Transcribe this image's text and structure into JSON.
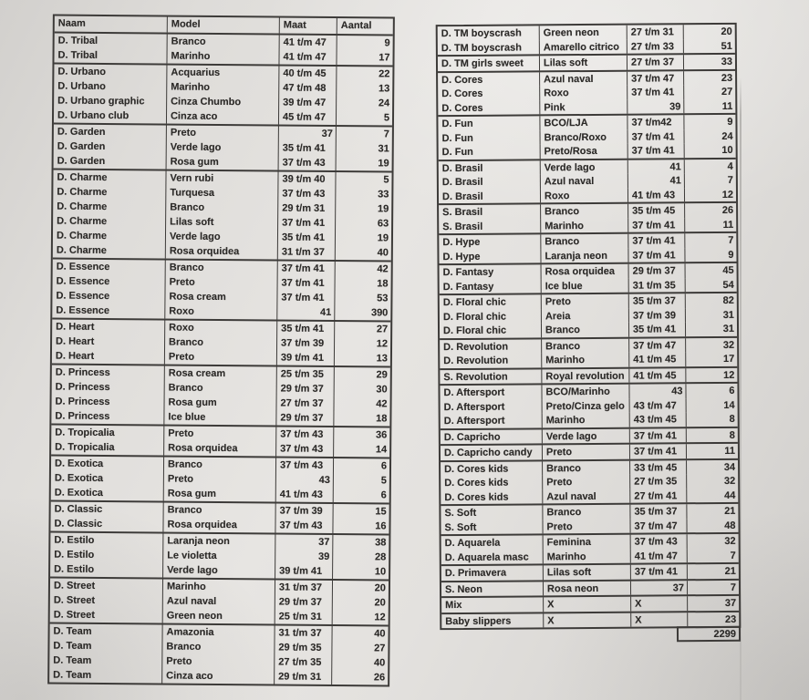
{
  "colors": {
    "paper": "#e4e2df",
    "ink": "#2b2927",
    "grid": "#3d3b39"
  },
  "left_table": {
    "headers": [
      "Naam",
      "Model",
      "Maat",
      "Aantal"
    ],
    "groups": [
      {
        "rows": [
          [
            "D. Tribal",
            "Branco",
            "41 t/m 47",
            "9"
          ],
          [
            "D. Tribal",
            "Marinho",
            "41 t/m 47",
            "17"
          ]
        ]
      },
      {
        "rows": [
          [
            "D. Urbano",
            "Acquarius",
            "40 t/m 45",
            "22"
          ],
          [
            "D. Urbano",
            "Marinho",
            "47 t/m 48",
            "13"
          ],
          [
            "D. Urbano graphic",
            "Cinza Chumbo",
            "39 t/m 47",
            "24"
          ],
          [
            "D. Urbano club",
            "Cinza aco",
            "45 t/m 47",
            "5"
          ]
        ]
      },
      {
        "rows": [
          [
            "D. Garden",
            "Preto",
            "37",
            "7"
          ],
          [
            "D. Garden",
            "Verde lago",
            "35 t/m 41",
            "31"
          ],
          [
            "D. Garden",
            "Rosa gum",
            "37 t/m 43",
            "19"
          ]
        ]
      },
      {
        "rows": [
          [
            "D. Charme",
            "Vern rubi",
            "39 t/m 40",
            "5"
          ],
          [
            "D. Charme",
            "Turquesa",
            "37 t/m 43",
            "33"
          ],
          [
            "D. Charme",
            "Branco",
            "29 t/m 31",
            "19"
          ],
          [
            "D. Charme",
            "Lilas soft",
            "37 t/m 41",
            "63"
          ],
          [
            "D. Charme",
            "Verde lago",
            "35 t/m 41",
            "19"
          ],
          [
            "D. Charme",
            "Rosa orquidea",
            "31 t/m 37",
            "40"
          ]
        ]
      },
      {
        "rows": [
          [
            "D. Essence",
            "Branco",
            "37 t/m 41",
            "42"
          ],
          [
            "D. Essence",
            "Preto",
            "37 t/m 41",
            "18"
          ],
          [
            "D. Essence",
            "Rosa cream",
            "37 t/m 41",
            "53"
          ],
          [
            "D. Essence",
            "Roxo",
            "41",
            "390"
          ]
        ]
      },
      {
        "rows": [
          [
            "D. Heart",
            "Roxo",
            "35 t/m 41",
            "27"
          ],
          [
            "D. Heart",
            "Branco",
            "37 t/m 39",
            "12"
          ],
          [
            "D. Heart",
            "Preto",
            "39 t/m 41",
            "13"
          ]
        ]
      },
      {
        "rows": [
          [
            "D. Princess",
            "Rosa cream",
            "25 t/m 35",
            "29"
          ],
          [
            "D. Princess",
            "Branco",
            "29 t/m 37",
            "30"
          ],
          [
            "D. Princess",
            "Rosa gum",
            "27 t/m 37",
            "42"
          ],
          [
            "D. Princess",
            "Ice blue",
            "29 t/m 37",
            "18"
          ]
        ]
      },
      {
        "rows": [
          [
            "D. Tropicalia",
            "Preto",
            "37 t/m 43",
            "36"
          ],
          [
            "D. Tropicalia",
            "Rosa orquidea",
            "37 t/m 43",
            "14"
          ]
        ]
      },
      {
        "rows": [
          [
            "D. Exotica",
            "Branco",
            "37 t/m 43",
            "6"
          ],
          [
            "D. Exotica",
            "Preto",
            "43",
            "5"
          ],
          [
            "D. Exotica",
            "Rosa gum",
            "41 t/m 43",
            "6"
          ]
        ]
      },
      {
        "rows": [
          [
            "D. Classic",
            "Branco",
            "37 t/m 39",
            "15"
          ],
          [
            "D. Classic",
            "Rosa orquidea",
            "37 t/m 43",
            "16"
          ]
        ]
      },
      {
        "rows": [
          [
            "D. Estilo",
            "Laranja neon",
            "37",
            "38"
          ],
          [
            "D. Estilo",
            "Le violetta",
            "39",
            "28"
          ],
          [
            "D. Estilo",
            "Verde lago",
            "39 t/m 41",
            "10"
          ]
        ]
      },
      {
        "rows": [
          [
            "D. Street",
            "Marinho",
            "31 t/m 37",
            "20"
          ],
          [
            "D. Street",
            "Azul naval",
            "29 t/m 37",
            "20"
          ],
          [
            "D. Street",
            "Green neon",
            "25 t/m 31",
            "12"
          ]
        ]
      },
      {
        "rows": [
          [
            "D. Team",
            "Amazonia",
            "31 t/m 37",
            "40"
          ],
          [
            "D. Team",
            "Branco",
            "29 t/m 35",
            "27"
          ],
          [
            "D. Team",
            "Preto",
            "27 t/m 35",
            "40"
          ],
          [
            "D. Team",
            "Cinza aco",
            "29 t/m 31",
            "26"
          ]
        ]
      }
    ]
  },
  "right_table": {
    "headers": [],
    "groups": [
      {
        "rows": [
          [
            "D. TM boyscrash",
            "Green neon",
            "27 t/m 31",
            "20"
          ],
          [
            "D. TM boyscrash",
            "Amarello citrico",
            "27 t/m 33",
            "51"
          ]
        ]
      },
      {
        "rows": [
          [
            "D. TM girls sweet",
            "Lilas soft",
            "27 t/m 37",
            "33"
          ]
        ]
      },
      {
        "rows": [
          [
            "D. Cores",
            "Azul naval",
            "37 t/m 47",
            "23"
          ],
          [
            "D. Cores",
            "Roxo",
            "37 t/m 41",
            "27"
          ],
          [
            "D. Cores",
            "Pink",
            "39",
            "11"
          ]
        ]
      },
      {
        "rows": [
          [
            "D. Fun",
            "BCO/LJA",
            "37 t/m42",
            "9"
          ],
          [
            "D. Fun",
            "Branco/Roxo",
            "37 t/m 41",
            "24"
          ],
          [
            "D. Fun",
            "Preto/Rosa",
            "37 t/m 41",
            "10"
          ]
        ]
      },
      {
        "rows": [
          [
            "D. Brasil",
            "Verde lago",
            "41",
            "4"
          ],
          [
            "D. Brasil",
            "Azul naval",
            "41",
            "7"
          ],
          [
            "D. Brasil",
            "Roxo",
            "41 t/m 43",
            "12"
          ]
        ]
      },
      {
        "rows": [
          [
            "S. Brasil",
            "Branco",
            "35 t/m 45",
            "26"
          ],
          [
            "S. Brasil",
            "Marinho",
            "37 t/m 41",
            "11"
          ]
        ]
      },
      {
        "rows": [
          [
            "D. Hype",
            "Branco",
            "37 t/m 41",
            "7"
          ],
          [
            "D. Hype",
            "Laranja neon",
            "37 t/m 41",
            "9"
          ]
        ]
      },
      {
        "rows": [
          [
            "D. Fantasy",
            "Rosa orquidea",
            "29 t/m 37",
            "45"
          ],
          [
            "D. Fantasy",
            "Ice blue",
            "31 t/m 35",
            "54"
          ]
        ]
      },
      {
        "rows": [
          [
            "D. Floral chic",
            "Preto",
            "35 t/m 37",
            "82"
          ],
          [
            "D. Floral chic",
            "Areia",
            "37 t/m 39",
            "31"
          ],
          [
            "D. Floral chic",
            "Branco",
            "35 t/m 41",
            "31"
          ]
        ]
      },
      {
        "rows": [
          [
            "D. Revolution",
            "Branco",
            "37 t/m 47",
            "32"
          ],
          [
            "D. Revolution",
            "Marinho",
            "41 t/m 45",
            "17"
          ]
        ]
      },
      {
        "rows": [
          [
            "S. Revolution",
            "Royal revolution",
            "41 t/m 45",
            "12"
          ]
        ]
      },
      {
        "rows": [
          [
            "D. Aftersport",
            "BCO/Marinho",
            "43",
            "6"
          ],
          [
            "D. Aftersport",
            "Preto/Cinza gelo",
            "43 t/m 47",
            "14"
          ],
          [
            "D. Aftersport",
            "Marinho",
            "43 t/m 45",
            "8"
          ]
        ]
      },
      {
        "rows": [
          [
            "D. Capricho",
            "Verde lago",
            "37 t/m 41",
            "8"
          ]
        ]
      },
      {
        "rows": [
          [
            "D. Capricho candy",
            "Preto",
            "37 t/m 41",
            "11"
          ]
        ]
      },
      {
        "rows": [
          [
            "D. Cores kids",
            "Branco",
            "33 t/m 45",
            "34"
          ],
          [
            "D. Cores kids",
            "Preto",
            "27 t/m 35",
            "32"
          ],
          [
            "D. Cores kids",
            "Azul naval",
            "27 t/m 41",
            "44"
          ]
        ]
      },
      {
        "rows": [
          [
            "S. Soft",
            "Branco",
            "35 t/m 37",
            "21"
          ],
          [
            "S. Soft",
            "Preto",
            "37 t/m 47",
            "48"
          ]
        ]
      },
      {
        "rows": [
          [
            "D. Aquarela",
            "Feminina",
            "37 t/m 43",
            "32"
          ],
          [
            "D. Aquarela masc",
            "Marinho",
            "41 t/m 47",
            "7"
          ]
        ]
      },
      {
        "rows": [
          [
            "D. Primavera",
            "Lilas soft",
            "37 t/m 41",
            "21"
          ]
        ]
      },
      {
        "rows": [
          [
            "S. Neon",
            "Rosa neon",
            "37",
            "7"
          ]
        ]
      },
      {
        "rows": [
          [
            "Mix",
            "X",
            "X",
            "37"
          ]
        ]
      },
      {
        "rows": [
          [
            "Baby slippers",
            "X",
            "X",
            "23"
          ]
        ]
      }
    ],
    "total": "2299"
  }
}
